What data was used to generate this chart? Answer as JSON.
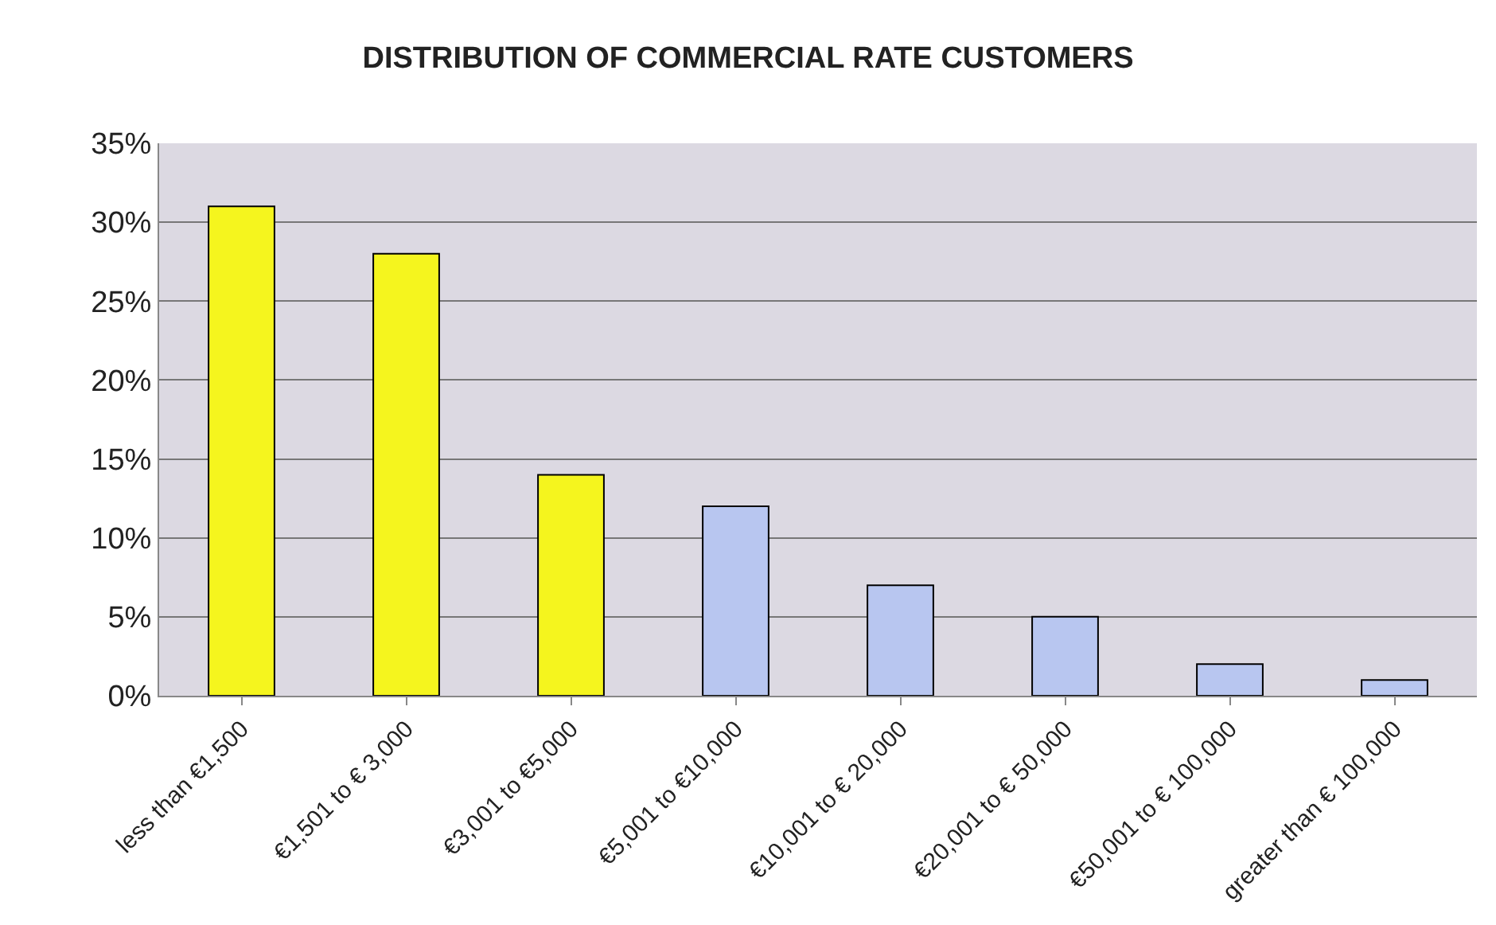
{
  "chart_data": {
    "type": "bar",
    "title": "DISTRIBUTION OF COMMERCIAL RATE CUSTOMERS",
    "categories": [
      "less than €1,500",
      "€1,501 to € 3,000",
      "€3,001 to €5,000",
      "€5,001 to €10,000",
      "€10,001 to € 20,000",
      "€20,001 to € 50,000",
      "€50,001 to € 100,000",
      "greater than € 100,000"
    ],
    "values": [
      31,
      28,
      14,
      12,
      7,
      5,
      2,
      1
    ],
    "colors": [
      "#f5f51e",
      "#f5f51e",
      "#f5f51e",
      "#b8c6f0",
      "#b8c6f0",
      "#b8c6f0",
      "#b8c6f0",
      "#b8c6f0"
    ],
    "ylim": [
      0,
      35
    ],
    "yticks": [
      {
        "value": 0,
        "label": "0%"
      },
      {
        "value": 5,
        "label": "5%"
      },
      {
        "value": 10,
        "label": "10%"
      },
      {
        "value": 15,
        "label": "15%"
      },
      {
        "value": 20,
        "label": "20%"
      },
      {
        "value": 25,
        "label": "25%"
      },
      {
        "value": 30,
        "label": "30%"
      },
      {
        "value": 35,
        "label": "35%"
      }
    ],
    "grid": "y"
  }
}
